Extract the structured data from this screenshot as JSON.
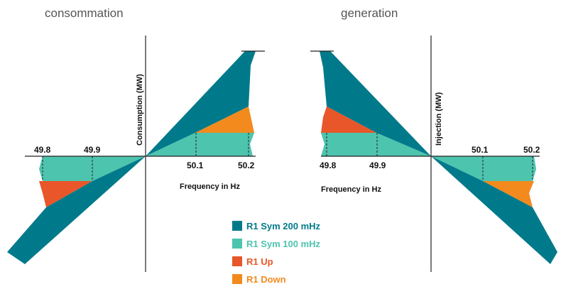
{
  "left": {
    "title": "consommation",
    "y_axis_label": "Consumption (MW)",
    "x_axis_label": "Frequency in Hz",
    "ticks": [
      "49.8",
      "49.9",
      "50.1",
      "50.2"
    ]
  },
  "right": {
    "title": "generation",
    "y_axis_label": "Injection (MW)",
    "x_axis_label": "Frequency in Hz",
    "ticks": [
      "49.8",
      "49.9",
      "50.1",
      "50.2"
    ]
  },
  "legend": [
    "R1 Sym 200 mHz",
    "R1 Sym 100 mHz",
    "R1 Up",
    "R1 Down"
  ]
}
